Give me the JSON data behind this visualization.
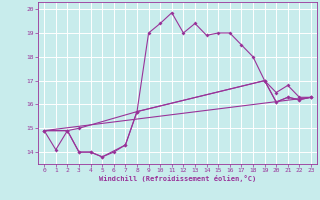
{
  "xlabel": "Windchill (Refroidissement éolien,°C)",
  "background_color": "#c8ecec",
  "grid_color": "#ffffff",
  "line_color": "#993399",
  "xlim": [
    -0.5,
    23.5
  ],
  "ylim": [
    13.5,
    20.3
  ],
  "yticks": [
    14,
    15,
    16,
    17,
    18,
    19,
    20
  ],
  "xticks": [
    0,
    1,
    2,
    3,
    4,
    5,
    6,
    7,
    8,
    9,
    10,
    11,
    12,
    13,
    14,
    15,
    16,
    17,
    18,
    19,
    20,
    21,
    22,
    23
  ],
  "series": {
    "line1_x": [
      0,
      1,
      2,
      3,
      4,
      5,
      6,
      7,
      8,
      9,
      10,
      11,
      12,
      13,
      14,
      15,
      16,
      17,
      18,
      19,
      20,
      21,
      22,
      23
    ],
    "line1_y": [
      14.9,
      14.1,
      14.9,
      14.0,
      14.0,
      13.8,
      14.0,
      14.3,
      15.7,
      19.0,
      19.4,
      19.85,
      19.0,
      19.4,
      18.9,
      19.0,
      19.0,
      18.5,
      18.0,
      17.0,
      16.1,
      16.3,
      16.2,
      16.3
    ],
    "line2_x": [
      0,
      2,
      3,
      4,
      5,
      7,
      8,
      19,
      20,
      21,
      22,
      23
    ],
    "line2_y": [
      14.9,
      14.9,
      14.0,
      14.0,
      13.8,
      14.3,
      15.7,
      17.0,
      16.1,
      16.3,
      16.2,
      16.3
    ],
    "line3_x": [
      0,
      2,
      3,
      8,
      19,
      20,
      21,
      22,
      23
    ],
    "line3_y": [
      14.9,
      14.9,
      15.0,
      15.7,
      17.0,
      16.5,
      16.8,
      16.3,
      16.3
    ],
    "line4_x": [
      0,
      23
    ],
    "line4_y": [
      14.9,
      16.3
    ]
  }
}
